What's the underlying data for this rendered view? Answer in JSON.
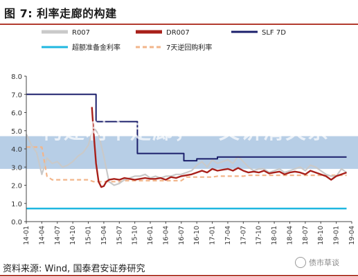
{
  "figure": {
    "title": "图 7:  利率走廊的构建",
    "source": "资料来源:  Wind,  国泰君安证券研究",
    "watermark_text": "构建利率走廊，一文讲清关系",
    "watermark_brand": "债市草谈"
  },
  "colors": {
    "R007": "#c9c9c9",
    "DR007": "#a8201a",
    "SLF7D": "#1b1f6b",
    "excess_reserve": "#1fb7e0",
    "reverse_repo": "#f2b58a",
    "accent_rule": "#b23a2e",
    "band": "#5f93c8"
  },
  "chart_data": {
    "type": "line",
    "ylim": [
      0,
      8
    ],
    "yticks": [
      "0.0",
      "1.0",
      "2.0",
      "3.0",
      "4.0",
      "5.0",
      "6.0",
      "7.0",
      "8.0"
    ],
    "xticks": [
      "14-01",
      "14-04",
      "14-07",
      "14-10",
      "15-01",
      "15-04",
      "15-07",
      "15-10",
      "16-01",
      "16-04",
      "16-07",
      "16-10",
      "17-01",
      "17-04",
      "17-07",
      "17-10",
      "18-01",
      "18-04",
      "18-07",
      "18-10",
      "19-01",
      "19-04"
    ],
    "legend": {
      "placement": "top",
      "entries": [
        {
          "key": "R007",
          "label": "R007",
          "style": "solid-thick"
        },
        {
          "key": "DR007",
          "label": "DR007",
          "style": "solid-thick"
        },
        {
          "key": "SLF7D",
          "label": "SLF 7D",
          "style": "solid"
        },
        {
          "key": "excess_reserve",
          "label": "超额准备金利率",
          "style": "solid"
        },
        {
          "key": "reverse_repo",
          "label": "7天逆回购利率",
          "style": "dashed"
        }
      ]
    },
    "series": [
      {
        "name": "R007",
        "key": "R007",
        "points": [
          [
            0,
            4.8
          ],
          [
            1,
            4.2
          ],
          [
            2,
            3.8
          ],
          [
            3,
            2.6
          ],
          [
            4,
            3.5
          ],
          [
            5,
            3.2
          ],
          [
            6,
            3.3
          ],
          [
            7,
            3.0
          ],
          [
            8,
            3.1
          ],
          [
            9,
            3.3
          ],
          [
            10,
            3.6
          ],
          [
            11,
            3.8
          ],
          [
            12,
            4.2
          ],
          [
            13,
            5.2
          ],
          [
            14,
            4.8
          ],
          [
            15,
            3.6
          ],
          [
            16,
            2.2
          ],
          [
            17,
            2.0
          ],
          [
            18,
            2.1
          ],
          [
            19,
            2.3
          ],
          [
            20,
            2.4
          ],
          [
            21,
            2.5
          ],
          [
            22,
            2.5
          ],
          [
            23,
            2.6
          ],
          [
            24,
            2.4
          ],
          [
            25,
            2.5
          ],
          [
            26,
            2.4
          ],
          [
            27,
            2.5
          ],
          [
            28,
            2.5
          ],
          [
            29,
            2.6
          ],
          [
            30,
            2.6
          ],
          [
            31,
            2.7
          ],
          [
            32,
            2.8
          ],
          [
            33,
            3.1
          ],
          [
            34,
            3.3
          ],
          [
            35,
            3.0
          ],
          [
            36,
            3.4
          ],
          [
            37,
            3.2
          ],
          [
            38,
            3.3
          ],
          [
            39,
            3.4
          ],
          [
            40,
            3.2
          ],
          [
            41,
            3.6
          ],
          [
            42,
            3.3
          ],
          [
            43,
            3.0
          ],
          [
            44,
            2.8
          ],
          [
            45,
            2.9
          ],
          [
            46,
            2.9
          ],
          [
            47,
            2.7
          ],
          [
            48,
            2.8
          ],
          [
            49,
            2.9
          ],
          [
            50,
            2.7
          ],
          [
            51,
            2.8
          ],
          [
            52,
            2.9
          ],
          [
            53,
            3.0
          ],
          [
            54,
            2.8
          ],
          [
            55,
            3.1
          ],
          [
            56,
            3.0
          ],
          [
            57,
            2.8
          ],
          [
            58,
            2.6
          ],
          [
            59,
            2.5
          ],
          [
            60,
            2.5
          ],
          [
            61,
            2.9
          ],
          [
            62,
            2.7
          ]
        ]
      },
      {
        "name": "DR007",
        "key": "DR007",
        "points": [
          [
            12.7,
            6.3
          ],
          [
            13,
            5.0
          ],
          [
            13.5,
            3.2
          ],
          [
            14,
            2.2
          ],
          [
            14.5,
            1.9
          ],
          [
            15,
            1.95
          ],
          [
            15.5,
            2.2
          ],
          [
            16,
            2.3
          ],
          [
            17,
            2.35
          ],
          [
            18,
            2.3
          ],
          [
            19,
            2.4
          ],
          [
            20,
            2.35
          ],
          [
            21,
            2.3
          ],
          [
            22,
            2.35
          ],
          [
            23,
            2.4
          ],
          [
            24,
            2.35
          ],
          [
            25,
            2.35
          ],
          [
            26,
            2.4
          ],
          [
            27,
            2.3
          ],
          [
            28,
            2.45
          ],
          [
            29,
            2.4
          ],
          [
            30,
            2.5
          ],
          [
            31,
            2.55
          ],
          [
            32,
            2.6
          ],
          [
            33,
            2.7
          ],
          [
            34,
            2.8
          ],
          [
            35,
            2.7
          ],
          [
            36,
            2.9
          ],
          [
            37,
            2.8
          ],
          [
            38,
            2.85
          ],
          [
            39,
            2.9
          ],
          [
            40,
            2.8
          ],
          [
            41,
            2.95
          ],
          [
            42,
            2.8
          ],
          [
            43,
            2.7
          ],
          [
            44,
            2.75
          ],
          [
            45,
            2.7
          ],
          [
            46,
            2.8
          ],
          [
            47,
            2.65
          ],
          [
            48,
            2.7
          ],
          [
            49,
            2.75
          ],
          [
            50,
            2.6
          ],
          [
            51,
            2.7
          ],
          [
            52,
            2.75
          ],
          [
            53,
            2.7
          ],
          [
            54,
            2.6
          ],
          [
            55,
            2.8
          ],
          [
            56,
            2.7
          ],
          [
            57,
            2.6
          ],
          [
            58,
            2.5
          ],
          [
            59,
            2.3
          ],
          [
            60,
            2.5
          ],
          [
            61,
            2.6
          ],
          [
            62,
            2.7
          ]
        ]
      },
      {
        "name": "SLF 7D",
        "key": "SLF7D",
        "step": true,
        "points": [
          [
            0,
            7.0
          ],
          [
            13.5,
            7.0
          ],
          [
            13.5,
            5.5
          ],
          [
            21.5,
            5.5
          ],
          [
            21.5,
            3.75
          ],
          [
            30.5,
            3.75
          ],
          [
            30.5,
            3.35
          ],
          [
            33,
            3.35
          ],
          [
            33,
            3.45
          ],
          [
            37,
            3.45
          ],
          [
            37,
            3.55
          ],
          [
            62,
            3.55
          ]
        ]
      },
      {
        "name": "超额准备金利率",
        "key": "excess_reserve",
        "points": [
          [
            0,
            0.72
          ],
          [
            62,
            0.72
          ]
        ]
      },
      {
        "name": "7天逆回购利率",
        "key": "reverse_repo",
        "dashed": true,
        "points": [
          [
            0,
            4.1
          ],
          [
            3,
            4.1
          ],
          [
            4,
            2.5
          ],
          [
            5,
            2.3
          ],
          [
            12,
            2.3
          ],
          [
            13,
            2.2
          ],
          [
            18,
            2.2
          ],
          [
            19,
            2.25
          ],
          [
            30,
            2.25
          ],
          [
            31,
            2.45
          ],
          [
            36,
            2.45
          ],
          [
            37,
            2.5
          ],
          [
            42,
            2.5
          ],
          [
            43,
            2.55
          ],
          [
            62,
            2.55
          ]
        ]
      }
    ]
  }
}
